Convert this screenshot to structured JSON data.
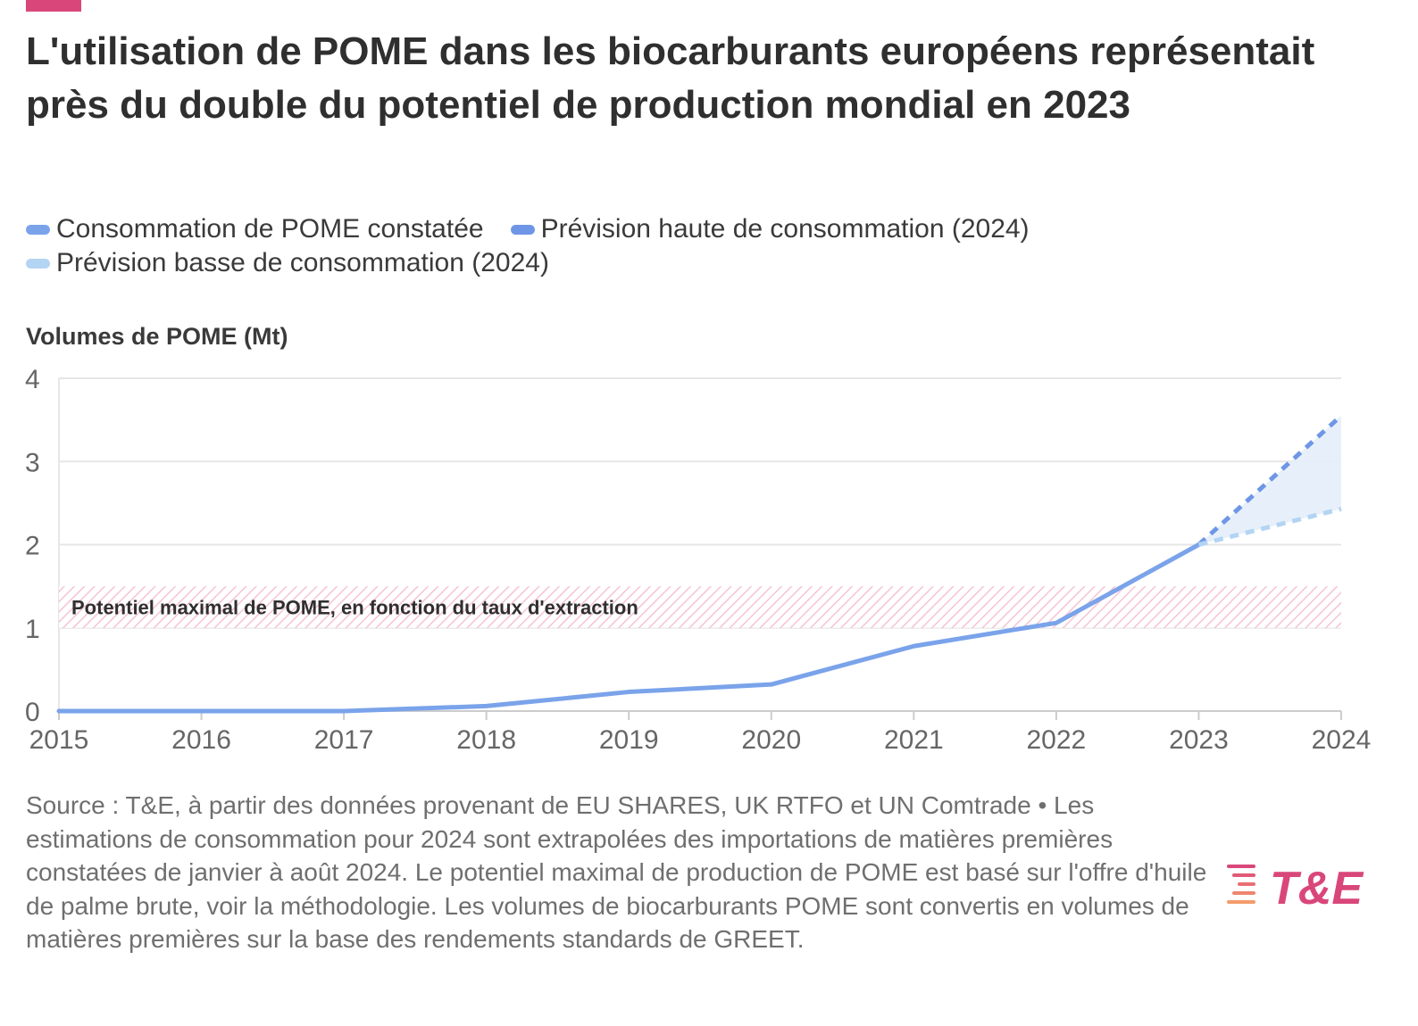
{
  "header": {
    "title": "L'utilisation de POME dans les biocarburants européens représentait près du double du potentiel de production mondial en 2023"
  },
  "colors": {
    "accent": "#d9477a",
    "observed": "#7aa3ea",
    "high": "#6f96e6",
    "low": "#b3d4f3",
    "band_fill": "#e4eefa",
    "hatch": "#f4b9cb",
    "grid": "#e6e6e6",
    "axis_text": "#666666"
  },
  "legend": {
    "items": [
      {
        "label": "Consommation de POME constatée"
      },
      {
        "label": "Prévision haute de consommation (2024)"
      },
      {
        "label": "Prévision basse de consommation (2024)"
      }
    ]
  },
  "source": {
    "text": "Source : T&E, à partir des données provenant de EU SHARES, UK RTFO et UN Comtrade • Les estimations de consommation pour 2024 sont extrapolées des importations de matières premières constatées de janvier à août 2024. Le potentiel maximal de production de POME est basé sur l'offre d'huile de palme brute, voir la méthodologie. Les volumes de biocarburants POME sont convertis en volumes de matières premières sur la base des rendements standards de GREET."
  },
  "logo": {
    "text": "T&E",
    "icon": "stacked-lines-logo-icon"
  },
  "chart_data": {
    "type": "line",
    "title": "L'utilisation de POME dans les biocarburants européens représentait près du double du potentiel de production mondial en 2023",
    "ylabel": "Volumes de POME (Mt)",
    "xlabel": "",
    "ylim": [
      0,
      4
    ],
    "yticks": [
      "0",
      "1",
      "2",
      "3",
      "4"
    ],
    "x": [
      "2015",
      "2016",
      "2017",
      "2018",
      "2019",
      "2020",
      "2021",
      "2022",
      "2023",
      "2024"
    ],
    "series": [
      {
        "name": "Consommation de POME constatée",
        "style": "solid",
        "x": [
          "2015",
          "2016",
          "2017",
          "2018",
          "2019",
          "2020",
          "2021",
          "2022",
          "2023"
        ],
        "values": [
          0.0,
          0.0,
          0.0,
          0.06,
          0.23,
          0.32,
          0.78,
          1.06,
          2.0
        ]
      },
      {
        "name": "Prévision haute de consommation (2024)",
        "style": "dashed",
        "x": [
          "2023",
          "2024"
        ],
        "values": [
          2.0,
          3.55
        ]
      },
      {
        "name": "Prévision basse de consommation (2024)",
        "style": "dashed",
        "x": [
          "2023",
          "2024"
        ],
        "values": [
          2.0,
          2.43
        ]
      }
    ],
    "band": {
      "label": "Potentiel maximal de POME, en fonction du taux d'extraction",
      "y_min": 1.0,
      "y_max": 1.5,
      "x_range": [
        "2015",
        "2024"
      ]
    },
    "grid": true
  }
}
